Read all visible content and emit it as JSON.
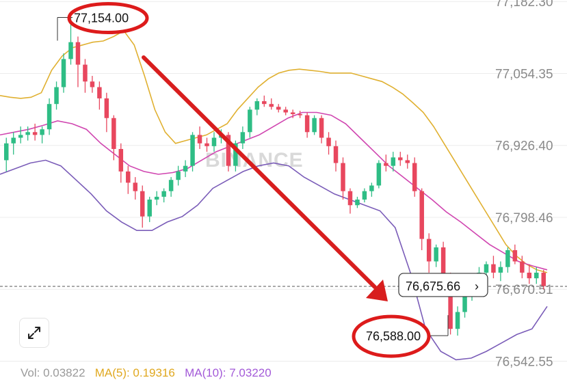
{
  "chart_data": {
    "type": "candlestick",
    "y_axis_labels": [
      "77,182.30",
      "77,054.35",
      "76,926.40",
      "76,798.46",
      "76,670.51",
      "76,542.55"
    ],
    "ylim": [
      76520,
      77185
    ],
    "watermark": "BINANCE",
    "current_price": {
      "label": "76,675.66",
      "value": 76675.66
    },
    "annotations": {
      "high": {
        "label": "77,154.00",
        "value": 77154
      },
      "low": {
        "label": "76,588.00",
        "value": 76588
      }
    },
    "colors": {
      "up": "#2ebd85",
      "down": "#e8475e",
      "upper_band": "#e0b030",
      "middle_band": "#d045b0",
      "lower_band": "#7a5cb8",
      "arrow": "#d81e1e",
      "circle": "#dd1b1b",
      "grid": "#ececec"
    },
    "candles": [
      {
        "o": 76900,
        "h": 76940,
        "l": 76880,
        "c": 76930
      },
      {
        "o": 76930,
        "h": 76950,
        "l": 76910,
        "c": 76940
      },
      {
        "o": 76940,
        "h": 76960,
        "l": 76930,
        "c": 76945
      },
      {
        "o": 76945,
        "h": 76960,
        "l": 76935,
        "c": 76950
      },
      {
        "o": 76950,
        "h": 76965,
        "l": 76935,
        "c": 76945
      },
      {
        "o": 76945,
        "h": 76960,
        "l": 76930,
        "c": 76955
      },
      {
        "o": 76955,
        "h": 77010,
        "l": 76945,
        "c": 77000
      },
      {
        "o": 77000,
        "h": 77040,
        "l": 76990,
        "c": 77030
      },
      {
        "o": 77030,
        "h": 77090,
        "l": 77020,
        "c": 77080
      },
      {
        "o": 77080,
        "h": 77154,
        "l": 77070,
        "c": 77110
      },
      {
        "o": 77110,
        "h": 77120,
        "l": 77030,
        "c": 77070
      },
      {
        "o": 77070,
        "h": 77080,
        "l": 77020,
        "c": 77040
      },
      {
        "o": 77040,
        "h": 77050,
        "l": 77020,
        "c": 77030
      },
      {
        "o": 77030,
        "h": 77040,
        "l": 76990,
        "c": 77010
      },
      {
        "o": 77010,
        "h": 77020,
        "l": 76950,
        "c": 76975
      },
      {
        "o": 76975,
        "h": 76980,
        "l": 76900,
        "c": 76920
      },
      {
        "o": 76920,
        "h": 76930,
        "l": 76860,
        "c": 76880
      },
      {
        "o": 76880,
        "h": 76890,
        "l": 76840,
        "c": 76860
      },
      {
        "o": 76860,
        "h": 76870,
        "l": 76830,
        "c": 76845
      },
      {
        "o": 76845,
        "h": 76855,
        "l": 76780,
        "c": 76800
      },
      {
        "o": 76800,
        "h": 76835,
        "l": 76790,
        "c": 76830
      },
      {
        "o": 76830,
        "h": 76845,
        "l": 76820,
        "c": 76835
      },
      {
        "o": 76835,
        "h": 76850,
        "l": 76825,
        "c": 76845
      },
      {
        "o": 76845,
        "h": 76870,
        "l": 76835,
        "c": 76865
      },
      {
        "o": 76865,
        "h": 76890,
        "l": 76855,
        "c": 76880
      },
      {
        "o": 76880,
        "h": 76900,
        "l": 76870,
        "c": 76890
      },
      {
        "o": 76890,
        "h": 76950,
        "l": 76880,
        "c": 76945
      },
      {
        "o": 76945,
        "h": 76960,
        "l": 76920,
        "c": 76930
      },
      {
        "o": 76930,
        "h": 76940,
        "l": 76915,
        "c": 76925
      },
      {
        "o": 76925,
        "h": 76950,
        "l": 76915,
        "c": 76940
      },
      {
        "o": 76940,
        "h": 76955,
        "l": 76930,
        "c": 76945
      },
      {
        "o": 76945,
        "h": 76950,
        "l": 76880,
        "c": 76890
      },
      {
        "o": 76890,
        "h": 76935,
        "l": 76880,
        "c": 76930
      },
      {
        "o": 76930,
        "h": 76960,
        "l": 76920,
        "c": 76950
      },
      {
        "o": 76950,
        "h": 76995,
        "l": 76940,
        "c": 76990
      },
      {
        "o": 76990,
        "h": 77010,
        "l": 76980,
        "c": 77005
      },
      {
        "o": 77005,
        "h": 77015,
        "l": 76995,
        "c": 77000
      },
      {
        "o": 77000,
        "h": 77010,
        "l": 76990,
        "c": 76995
      },
      {
        "o": 76995,
        "h": 77000,
        "l": 76985,
        "c": 76990
      },
      {
        "o": 76990,
        "h": 76995,
        "l": 76980,
        "c": 76985
      },
      {
        "o": 76985,
        "h": 76990,
        "l": 76975,
        "c": 76982
      },
      {
        "o": 76982,
        "h": 76988,
        "l": 76975,
        "c": 76980
      },
      {
        "o": 76980,
        "h": 76985,
        "l": 76940,
        "c": 76950
      },
      {
        "o": 76950,
        "h": 76980,
        "l": 76945,
        "c": 76975
      },
      {
        "o": 76975,
        "h": 76980,
        "l": 76930,
        "c": 76940
      },
      {
        "o": 76940,
        "h": 76950,
        "l": 76910,
        "c": 76925
      },
      {
        "o": 76925,
        "h": 76935,
        "l": 76880,
        "c": 76895
      },
      {
        "o": 76895,
        "h": 76905,
        "l": 76830,
        "c": 76845
      },
      {
        "o": 76845,
        "h": 76850,
        "l": 76805,
        "c": 76820
      },
      {
        "o": 76820,
        "h": 76835,
        "l": 76815,
        "c": 76830
      },
      {
        "o": 76830,
        "h": 76850,
        "l": 76825,
        "c": 76845
      },
      {
        "o": 76845,
        "h": 76860,
        "l": 76835,
        "c": 76855
      },
      {
        "o": 76855,
        "h": 76900,
        "l": 76850,
        "c": 76895
      },
      {
        "o": 76895,
        "h": 76910,
        "l": 76880,
        "c": 76890
      },
      {
        "o": 76890,
        "h": 76915,
        "l": 76880,
        "c": 76905
      },
      {
        "o": 76905,
        "h": 76915,
        "l": 76890,
        "c": 76900
      },
      {
        "o": 76900,
        "h": 76910,
        "l": 76885,
        "c": 76895
      },
      {
        "o": 76895,
        "h": 76905,
        "l": 76835,
        "c": 76845
      },
      {
        "o": 76845,
        "h": 76850,
        "l": 76740,
        "c": 76760
      },
      {
        "o": 76760,
        "h": 76770,
        "l": 76700,
        "c": 76720
      },
      {
        "o": 76720,
        "h": 76750,
        "l": 76710,
        "c": 76745
      },
      {
        "o": 76745,
        "h": 76755,
        "l": 76680,
        "c": 76690
      },
      {
        "o": 76690,
        "h": 76700,
        "l": 76590,
        "c": 76600
      },
      {
        "o": 76600,
        "h": 76640,
        "l": 76588,
        "c": 76630
      },
      {
        "o": 76630,
        "h": 76670,
        "l": 76620,
        "c": 76660
      },
      {
        "o": 76660,
        "h": 76690,
        "l": 76650,
        "c": 76680
      },
      {
        "o": 76680,
        "h": 76710,
        "l": 76670,
        "c": 76700
      },
      {
        "o": 76700,
        "h": 76720,
        "l": 76690,
        "c": 76715
      },
      {
        "o": 76715,
        "h": 76730,
        "l": 76690,
        "c": 76700
      },
      {
        "o": 76700,
        "h": 76720,
        "l": 76685,
        "c": 76710
      },
      {
        "o": 76710,
        "h": 76745,
        "l": 76700,
        "c": 76740
      },
      {
        "o": 76740,
        "h": 76750,
        "l": 76715,
        "c": 76720
      },
      {
        "o": 76720,
        "h": 76730,
        "l": 76690,
        "c": 76700
      },
      {
        "o": 76700,
        "h": 76715,
        "l": 76680,
        "c": 76690
      },
      {
        "o": 76690,
        "h": 76710,
        "l": 76680,
        "c": 76700
      },
      {
        "o": 76700,
        "h": 76705,
        "l": 76670,
        "c": 76676
      }
    ],
    "upper_band": [
      77015,
      77012,
      77010,
      77012,
      77020,
      77060,
      77085,
      77100,
      77105,
      77110,
      77112,
      77120,
      77130,
      77105,
      77050,
      76990,
      76950,
      76930,
      76935,
      76940,
      76945,
      76955,
      76965,
      76990,
      77010,
      77030,
      77045,
      77055,
      77060,
      77062,
      77060,
      77058,
      77055,
      77055,
      77055,
      77050,
      77045,
      77040,
      77030,
      77018,
      77002,
      76985,
      76960,
      76930,
      76900,
      76870,
      76840,
      76810,
      76780,
      76750,
      76730,
      76715,
      76705,
      76700
    ],
    "middle_band": [
      76945,
      76950,
      76955,
      76962,
      76970,
      76965,
      76955,
      76930,
      76910,
      76890,
      76880,
      76875,
      76878,
      76885,
      76900,
      76915,
      76925,
      76935,
      76945,
      76960,
      76975,
      76985,
      76985,
      76980,
      76965,
      76940,
      76915,
      76890,
      76870,
      76850,
      76830,
      76808,
      76790,
      76770,
      76750,
      76735,
      76720,
      76712,
      76705
    ],
    "lower_band": [
      76875,
      76885,
      76895,
      76900,
      76890,
      76865,
      76840,
      76810,
      76790,
      76775,
      76775,
      76790,
      76800,
      76820,
      76850,
      76865,
      76880,
      76890,
      76895,
      76890,
      76870,
      76855,
      76840,
      76830,
      76820,
      76810,
      76780,
      76700,
      76600,
      76560,
      76545,
      76548,
      76560,
      76575,
      76590,
      76600,
      76640
    ]
  },
  "ui": {
    "expand_icon": "expand-arrows-icon",
    "volume_strip": {
      "vol": "Vol: 0.03822",
      "ma5": "MA(5): 0.19316",
      "ma10": "MA(10): 7.03220"
    }
  }
}
